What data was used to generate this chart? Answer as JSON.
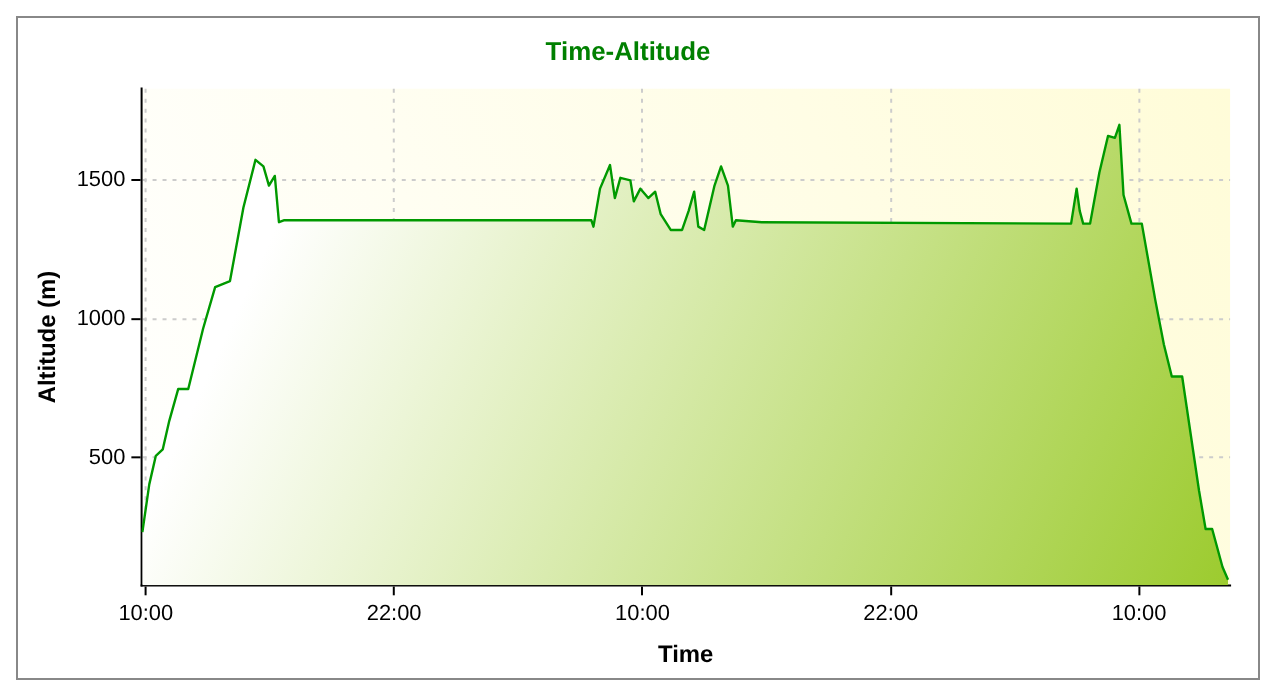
{
  "chart_data": {
    "type": "area",
    "title": "Time-Altitude",
    "xlabel": "Time",
    "ylabel": "Altitude (m)",
    "x": [
      "2000-01-01T09:50",
      "2000-01-01T10:10",
      "2000-01-01T10:29",
      "2000-01-01T10:49",
      "2000-01-01T11:08",
      "2000-01-01T11:34",
      "2000-01-01T12:03",
      "2000-01-01T12:46",
      "2000-01-01T13:21",
      "2000-01-01T14:04",
      "2000-01-01T14:43",
      "2000-01-01T15:18",
      "2000-01-01T15:41",
      "2000-01-01T15:57",
      "2000-01-01T16:14",
      "2000-01-01T16:26",
      "2000-01-01T16:40",
      "2000-01-02T07:32",
      "2000-01-02T07:38",
      "2000-01-02T07:57",
      "2000-01-02T08:26",
      "2000-01-02T08:40",
      "2000-01-02T08:56",
      "2000-01-02T09:25",
      "2000-01-02T09:35",
      "2000-01-02T09:54",
      "2000-01-02T10:17",
      "2000-01-02T10:37",
      "2000-01-02T10:53",
      "2000-01-02T11:22",
      "2000-01-02T11:55",
      "2000-01-02T12:14",
      "2000-01-02T12:30",
      "2000-01-02T12:42",
      "2000-01-02T12:59",
      "2000-01-02T13:29",
      "2000-01-02T13:48",
      "2000-01-02T14:08",
      "2000-01-02T14:22",
      "2000-01-02T14:31",
      "2000-01-02T15:46",
      "2000-01-03T06:43",
      "2000-01-03T06:59",
      "2000-01-03T07:08",
      "2000-01-03T07:18",
      "2000-01-03T07:38",
      "2000-01-03T08:05",
      "2000-01-03T08:30",
      "2000-01-03T08:50",
      "2000-01-03T09:03",
      "2000-01-03T09:15",
      "2000-01-03T09:38",
      "2000-01-03T10:08",
      "2000-01-03T10:47",
      "2000-01-03T11:12",
      "2000-01-03T11:35",
      "2000-01-03T12:05",
      "2000-01-03T12:54",
      "2000-01-03T13:13",
      "2000-01-03T13:32",
      "2000-01-03T14:02",
      "2000-01-03T14:18"
    ],
    "series": [
      {
        "color": "#009900",
        "values": [
          232,
          404,
          507,
          530,
          633,
          748,
          748,
          965,
          1115,
          1137,
          1402,
          1574,
          1550,
          1481,
          1516,
          1349,
          1356,
          1356,
          1333,
          1470,
          1555,
          1436,
          1509,
          1500,
          1424,
          1470,
          1436,
          1459,
          1378,
          1321,
          1321,
          1390,
          1459,
          1333,
          1321,
          1481,
          1550,
          1481,
          1333,
          1356,
          1349,
          1344,
          1470,
          1390,
          1344,
          1344,
          1528,
          1660,
          1653,
          1700,
          1447,
          1344,
          1344,
          1069,
          908,
          793,
          793,
          381,
          243,
          243,
          106,
          60
        ]
      }
    ],
    "xlim": [
      "2000-01-01T09:47",
      "2000-01-03T14:24"
    ],
    "ylim": [
      40,
      1830
    ],
    "xticks": [
      {
        "value": "2000-01-01T10:00",
        "label": "10:00"
      },
      {
        "value": "2000-01-01T22:00",
        "label": "22:00"
      },
      {
        "value": "2000-01-02T10:00",
        "label": "10:00"
      },
      {
        "value": "2000-01-02T22:00",
        "label": "22:00"
      },
      {
        "value": "2000-01-03T10:00",
        "label": "10:00"
      }
    ],
    "yticks": [
      500,
      1000,
      1500
    ],
    "grid": true,
    "legend": false,
    "marker": "none",
    "line_style": "solid"
  }
}
